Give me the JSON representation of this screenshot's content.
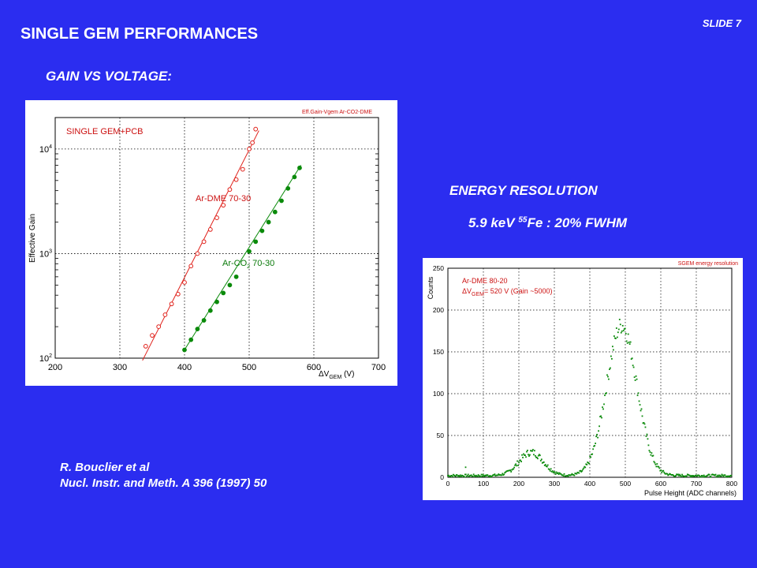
{
  "slide": {
    "title": "SINGLE GEM PERFORMANCES",
    "number": "SLIDE 7",
    "gain_heading": "GAIN VS VOLTAGE:",
    "energy_heading": "ENERGY RESOLUTION",
    "energy_sub_prefix": "5.9 keV ",
    "energy_sub_sup": "55",
    "energy_sub_suffix": "Fe : 20% FWHM",
    "ref_line1": "R. Bouclier et al",
    "ref_line2": "Nucl. Instr. and Meth. A 396 (1997) 50"
  },
  "colors": {
    "background": "#2b2df0",
    "red_series": "#e0201a",
    "green_series": "#0a8a0a",
    "label_red": "#cc1111"
  },
  "chart_data": [
    {
      "type": "scatter",
      "title": "Eff.Gain-Vgem Ar-CO2-DME",
      "ylabel": "Effective Gain",
      "xlabel_prefix": "ΔV",
      "xlabel_sub": "GEM",
      "xlabel_unit": "(V)",
      "xlim": [
        200,
        700
      ],
      "ylim": [
        100,
        20000
      ],
      "yscale": "log",
      "grid": true,
      "xticks": [
        "200",
        "300",
        "400",
        "500",
        "600",
        "700"
      ],
      "yticks": [
        {
          "base": "10",
          "exp": "2",
          "value": 100
        },
        {
          "base": "10",
          "exp": "3",
          "value": 1000
        },
        {
          "base": "10",
          "exp": "4",
          "value": 10000
        }
      ],
      "annotation": "SINGLE GEM+PCB",
      "series": [
        {
          "name": "Ar-DME 70-30",
          "color": "#e0201a",
          "marker": "open-circle",
          "x": [
            340,
            350,
            360,
            370,
            380,
            390,
            400,
            410,
            420,
            430,
            440,
            450,
            460,
            470,
            480,
            490,
            500,
            505,
            510
          ],
          "y": [
            130,
            165,
            200,
            260,
            330,
            410,
            530,
            760,
            1000,
            1300,
            1700,
            2200,
            2900,
            4100,
            5100,
            6400,
            10000,
            11500,
            15500
          ],
          "fit_x": [
            335,
            515
          ],
          "fit_y": [
            95,
            15000
          ]
        },
        {
          "name": "Ar-CO2 70-30",
          "name_prefix": "Ar-CO",
          "name_sub": "2",
          "name_suffix": " 70-30",
          "color": "#0a8a0a",
          "marker": "filled-circle",
          "x": [
            400,
            410,
            420,
            430,
            440,
            450,
            460,
            470,
            480,
            500,
            510,
            520,
            530,
            540,
            550,
            560,
            570,
            578
          ],
          "y": [
            120,
            150,
            190,
            230,
            285,
            345,
            420,
            500,
            600,
            1050,
            1300,
            1650,
            2000,
            2500,
            3200,
            4200,
            5400,
            6600
          ],
          "fit_x": [
            398,
            580
          ],
          "fit_y": [
            115,
            7000
          ]
        }
      ]
    },
    {
      "type": "scatter",
      "title": "SGEM energy resolution",
      "ylabel": "Counts",
      "xlabel": "Pulse Height (ADC  channels)",
      "xlim": [
        0,
        800
      ],
      "ylim": [
        0,
        250
      ],
      "grid": true,
      "xticks": [
        "0",
        "100",
        "200",
        "300",
        "400",
        "500",
        "600",
        "700",
        "800"
      ],
      "yticks": [
        "0",
        "50",
        "100",
        "150",
        "200",
        "250"
      ],
      "legend_line1": "Ar-DME 80-20",
      "legend_line2_prefix": "ΔV",
      "legend_line2_sub": "GEM",
      "legend_line2_suffix": "= 520 V (Gain ~5000)",
      "series": [
        {
          "name": "",
          "color": "#0a8a0a",
          "marker": "small-dot",
          "peaks": [
            {
              "center": 490,
              "height": 180,
              "fwhm": 100
            },
            {
              "center": 235,
              "height": 28,
              "fwhm": 80
            }
          ],
          "baseline": 2,
          "x_range": [
            0,
            800
          ],
          "spike": {
            "x": 50,
            "y": 12
          }
        }
      ]
    }
  ]
}
